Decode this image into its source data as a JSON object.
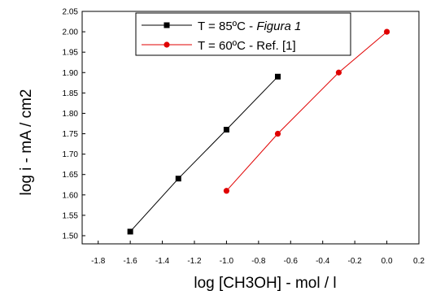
{
  "chart_data": {
    "type": "line",
    "xlabel": "log [CH3OH] - mol / l",
    "ylabel": "log i - mA / cm2",
    "xlim": [
      -1.9,
      0.2
    ],
    "ylim": [
      1.48,
      2.05
    ],
    "x_ticks": [
      -1.8,
      -1.6,
      -1.4,
      -1.2,
      -1.0,
      -0.8,
      -0.6,
      -0.4,
      -0.2,
      0.0,
      0.2
    ],
    "x_tick_labels": [
      "-1.8",
      "-1.6",
      "-1.4",
      "-1.2",
      "-1.0",
      "-0.8",
      "-0.6",
      "-0.4",
      "-0.2",
      "0.0",
      "0.2"
    ],
    "y_ticks": [
      1.5,
      1.55,
      1.6,
      1.65,
      1.7,
      1.75,
      1.8,
      1.85,
      1.9,
      1.95,
      2.0,
      2.05
    ],
    "y_tick_labels": [
      "1.50",
      "1.55",
      "1.60",
      "1.65",
      "1.70",
      "1.75",
      "1.80",
      "1.85",
      "1.90",
      "1.95",
      "2.00",
      "2.05"
    ],
    "grid": false,
    "legend_position": "top-center",
    "series": [
      {
        "name_plain": "T = 85ºC - ",
        "name_italic": "Figura 1",
        "color": "#000000",
        "marker": "square",
        "x": [
          -1.6,
          -1.3,
          -1.0,
          -0.68
        ],
        "y": [
          1.51,
          1.64,
          1.76,
          1.89
        ]
      },
      {
        "name_plain": "T = 60ºC - Ref. [1]",
        "name_italic": "",
        "color": "#e00000",
        "marker": "circle",
        "x": [
          -1.0,
          -0.68,
          -0.3,
          0.0
        ],
        "y": [
          1.61,
          1.75,
          1.9,
          2.0
        ]
      }
    ]
  }
}
